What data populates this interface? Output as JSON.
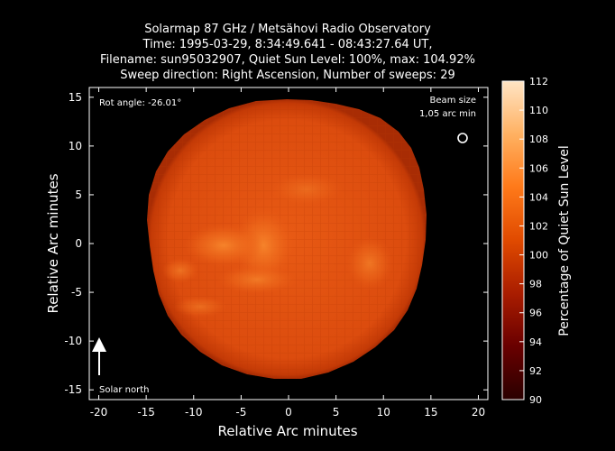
{
  "title": {
    "line1": "Solarmap 87 GHz / Metsähovi Radio Observatory",
    "line2": "Time: 1995-03-29,  8:34:49.641 - 08:43:27.64 UT,",
    "line3": "Filename: sun95032907, Quiet Sun Level: 100%, max: 104.92%",
    "line4": "Sweep direction: Right Ascension, Number of sweeps: 29"
  },
  "axes": {
    "xlabel": "Relative Arc minutes",
    "ylabel": "Relative Arc minutes",
    "xlim": [
      -21,
      21
    ],
    "ylim": [
      -16,
      16
    ],
    "xticks": [
      "-20",
      "-15",
      "-10",
      "-5",
      "0",
      "5",
      "10",
      "15",
      "20"
    ],
    "yticks": [
      "15",
      "10",
      "5",
      "0",
      "-5",
      "-10",
      "-15"
    ]
  },
  "annotations": {
    "rot_angle": "Rot angle: -26.01°",
    "beam_size_line1": "Beam size",
    "beam_size_line2": "1,05 arc min",
    "solar_north": "Solar north"
  },
  "colorbar": {
    "label": "Percentage of Quiet Sun Level",
    "min": 90,
    "max": 112,
    "ticks": [
      "112",
      "110",
      "108",
      "106",
      "104",
      "102",
      "100",
      "98",
      "96",
      "94",
      "92",
      "90"
    ],
    "colors": [
      "#2a0000",
      "#6a0000",
      "#a81c00",
      "#e04a00",
      "#ff7a1a",
      "#ffb060",
      "#ffe4c4"
    ]
  },
  "image": {
    "sun_radius_arcmin": 15.2,
    "sun_center_arcmin": [
      0,
      0
    ],
    "quiet_level_color": "#d9480c",
    "bright_region_color": "#f07a22",
    "beam_size_arcmin": 1.05
  }
}
